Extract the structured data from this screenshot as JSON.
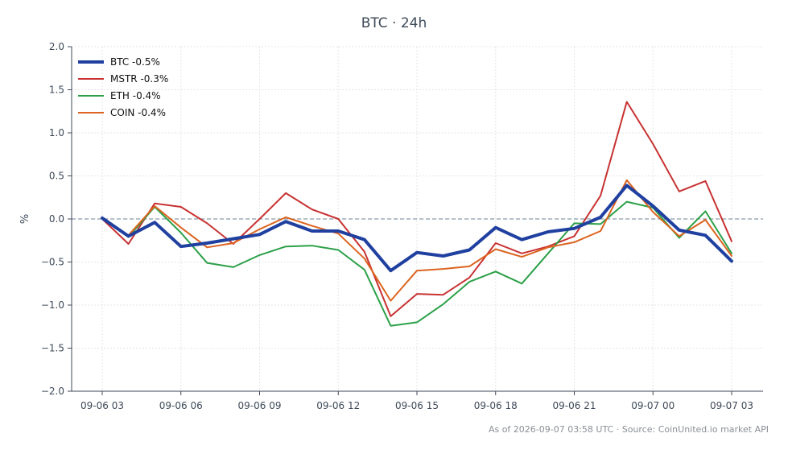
{
  "chart_data": {
    "type": "line",
    "title": "BTC · 24h",
    "ylabel": "%",
    "xlabel": "",
    "ylim": [
      -2.0,
      2.0
    ],
    "yticks": [
      -2.0,
      -1.5,
      -1.0,
      -0.5,
      0.0,
      0.5,
      1.0,
      1.5,
      2.0
    ],
    "ytick_labels": [
      "−2.0",
      "−1.5",
      "−1.0",
      "−0.5",
      "0.0",
      "0.5",
      "1.0",
      "1.5",
      "2.0"
    ],
    "x": [
      "09-06 03:00",
      "09-06 04:00",
      "09-06 05:00",
      "09-06 06:00",
      "09-06 07:00",
      "09-06 08:00",
      "09-06 09:00",
      "09-06 10:00",
      "09-06 11:00",
      "09-06 12:00",
      "09-06 13:00",
      "09-06 14:00",
      "09-06 15:00",
      "09-06 16:00",
      "09-06 17:00",
      "09-06 18:00",
      "09-06 19:00",
      "09-06 20:00",
      "09-06 21:00",
      "09-06 22:00",
      "09-06 23:00",
      "09-07 00:00",
      "09-07 01:00",
      "09-07 02:00",
      "09-07 03:00"
    ],
    "xtick_labels": [
      "09-06 03",
      "09-06 06",
      "09-06 09",
      "09-06 12",
      "09-06 15",
      "09-06 18",
      "09-06 21",
      "09-07 00",
      "09-07 03"
    ],
    "xtick_positions": [
      0,
      3,
      6,
      9,
      12,
      15,
      18,
      21,
      24
    ],
    "zero_line": true,
    "grid": true,
    "legend_position": "top-left",
    "series": [
      {
        "name": "BTC -0.5%",
        "color": "#2040a0",
        "width": 4,
        "values": [
          0.01,
          -0.2,
          -0.04,
          -0.32,
          -0.28,
          -0.23,
          -0.18,
          -0.03,
          -0.14,
          -0.14,
          -0.24,
          -0.6,
          -0.39,
          -0.43,
          -0.36,
          -0.1,
          -0.24,
          -0.15,
          -0.11,
          0.02,
          0.39,
          0.15,
          -0.13,
          -0.19,
          -0.49
        ]
      },
      {
        "name": "MSTR -0.3%",
        "color": "#c83232",
        "width": 2,
        "values": [
          0.0,
          -0.29,
          0.18,
          0.14,
          -0.05,
          -0.29,
          0.0,
          0.3,
          0.11,
          0.0,
          -0.38,
          -1.13,
          -0.87,
          -0.88,
          -0.68,
          -0.28,
          -0.4,
          -0.32,
          -0.2,
          0.27,
          1.36,
          0.87,
          0.32,
          0.44,
          -0.26
        ]
      },
      {
        "name": "ETH -0.4%",
        "color": "#2ca048",
        "width": 2,
        "values": [
          0.01,
          -0.21,
          0.14,
          -0.16,
          -0.51,
          -0.56,
          -0.42,
          -0.32,
          -0.31,
          -0.36,
          -0.59,
          -1.24,
          -1.2,
          -0.99,
          -0.73,
          -0.61,
          -0.75,
          -0.4,
          -0.05,
          -0.06,
          0.2,
          0.13,
          -0.22,
          0.09,
          -0.4
        ]
      },
      {
        "name": "COIN -0.4%",
        "color": "#dc6420",
        "width": 2,
        "values": [
          0.0,
          -0.19,
          0.15,
          -0.1,
          -0.33,
          -0.28,
          -0.12,
          0.02,
          -0.08,
          -0.17,
          -0.46,
          -0.95,
          -0.6,
          -0.58,
          -0.55,
          -0.35,
          -0.44,
          -0.33,
          -0.27,
          -0.14,
          0.45,
          0.08,
          -0.2,
          -0.01,
          -0.43
        ]
      }
    ]
  },
  "footer": "As of 2026-09-07 03:58 UTC · Source: CoinUnited.io market API"
}
